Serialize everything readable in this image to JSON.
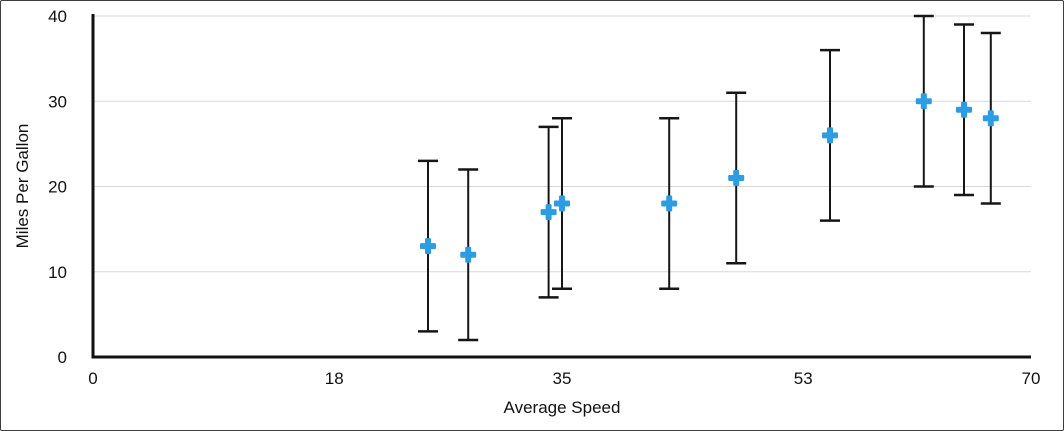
{
  "figure": {
    "background": "#ffffff",
    "border_color": "#3f3f3f"
  },
  "chart_data": {
    "type": "scatter",
    "title": "",
    "xlabel": "Average Speed",
    "ylabel": "Miles Per Gallon",
    "xlim": [
      0,
      70
    ],
    "ylim": [
      0,
      40
    ],
    "x_tick_values": [
      0,
      18,
      35,
      53,
      70
    ],
    "x_tick_labels": [
      "0",
      "18",
      "35",
      "53",
      "70"
    ],
    "y_tick_values": [
      0,
      10,
      20,
      30,
      40
    ],
    "y_tick_labels": [
      "0",
      "10",
      "20",
      "30",
      "40"
    ],
    "grid": "horizontal",
    "legend": "none",
    "marker": {
      "shape": "plus",
      "color": "#2d9de3",
      "size": 16
    },
    "error_bars": "symmetric ±10",
    "error_bar_color": "#161616",
    "gridline_color": "#d9d9d9",
    "axis_color": "#111111",
    "tick_label_color": "#111111",
    "series": [
      {
        "name": "Miles Per Gallon",
        "points": [
          {
            "x": 25,
            "y": 13,
            "err": 10
          },
          {
            "x": 28,
            "y": 12,
            "err": 10
          },
          {
            "x": 34,
            "y": 17,
            "err": 10
          },
          {
            "x": 35,
            "y": 18,
            "err": 10
          },
          {
            "x": 43,
            "y": 18,
            "err": 10
          },
          {
            "x": 48,
            "y": 21,
            "err": 10
          },
          {
            "x": 55,
            "y": 26,
            "err": 10
          },
          {
            "x": 62,
            "y": 30,
            "err": 10
          },
          {
            "x": 65,
            "y": 29,
            "err": 10
          },
          {
            "x": 67,
            "y": 28,
            "err": 10
          }
        ]
      }
    ]
  }
}
